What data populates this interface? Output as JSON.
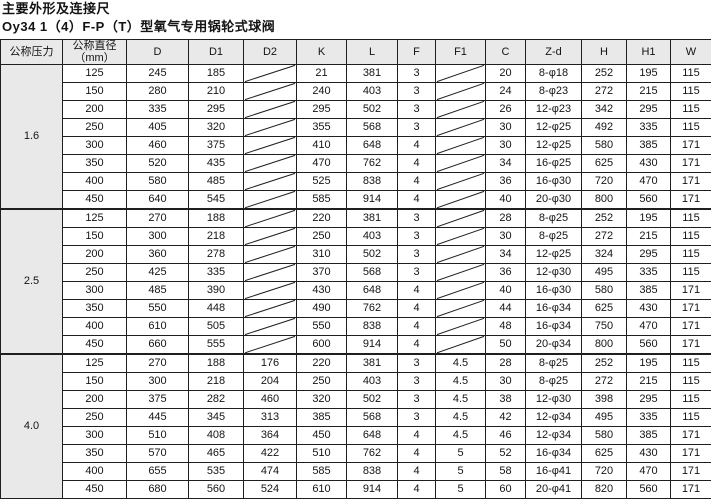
{
  "colors": {
    "border": "#1f1f1f",
    "header_bg": "#e9e9e9",
    "page_bg": "#ffffff",
    "text": "#141414"
  },
  "title": {
    "line1": "主要外形及连接尺",
    "line2": "Oy34 1（4）F-P（T）型氧气专用锅轮式球阀"
  },
  "table": {
    "headers": [
      "公称压力",
      "公称直径\n（mm）",
      "D",
      "D1",
      "D2",
      "K",
      "L",
      "F",
      "F1",
      "C",
      "Z-d",
      "H",
      "H1",
      "W"
    ],
    "slash_symbol": "/",
    "groups": [
      {
        "pressure": "1.6",
        "rows": [
          [
            "125",
            "245",
            "185",
            "/",
            "21",
            "381",
            "3",
            "/",
            "20",
            "8-φ18",
            "252",
            "195",
            "115"
          ],
          [
            "150",
            "280",
            "210",
            "/",
            "240",
            "403",
            "3",
            "/",
            "24",
            "8-φ23",
            "272",
            "215",
            "115"
          ],
          [
            "200",
            "335",
            "295",
            "/",
            "295",
            "502",
            "3",
            "/",
            "26",
            "12-φ23",
            "342",
            "295",
            "115"
          ],
          [
            "250",
            "405",
            "320",
            "/",
            "355",
            "568",
            "3",
            "/",
            "30",
            "12-φ25",
            "492",
            "335",
            "115"
          ],
          [
            "300",
            "460",
            "375",
            "/",
            "410",
            "648",
            "4",
            "/",
            "30",
            "12-φ25",
            "580",
            "385",
            "171"
          ],
          [
            "350",
            "520",
            "435",
            "/",
            "470",
            "762",
            "4",
            "/",
            "34",
            "16-φ25",
            "625",
            "430",
            "171"
          ],
          [
            "400",
            "580",
            "485",
            "/",
            "525",
            "838",
            "4",
            "/",
            "36",
            "16-φ30",
            "720",
            "470",
            "171"
          ],
          [
            "450",
            "640",
            "545",
            "/",
            "585",
            "914",
            "4",
            "/",
            "40",
            "20-φ30",
            "800",
            "560",
            "171"
          ]
        ]
      },
      {
        "pressure": "2.5",
        "rows": [
          [
            "125",
            "270",
            "188",
            "/",
            "220",
            "381",
            "3",
            "/",
            "28",
            "8-φ25",
            "252",
            "195",
            "115"
          ],
          [
            "150",
            "300",
            "218",
            "/",
            "250",
            "403",
            "3",
            "/",
            "30",
            "8-φ25",
            "272",
            "215",
            "115"
          ],
          [
            "200",
            "360",
            "278",
            "/",
            "310",
            "502",
            "3",
            "/",
            "34",
            "12-φ25",
            "324",
            "295",
            "115"
          ],
          [
            "250",
            "425",
            "335",
            "/",
            "370",
            "568",
            "3",
            "/",
            "36",
            "12-φ30",
            "495",
            "335",
            "115"
          ],
          [
            "300",
            "485",
            "390",
            "/",
            "430",
            "648",
            "4",
            "/",
            "40",
            "16-φ30",
            "580",
            "385",
            "171"
          ],
          [
            "350",
            "550",
            "448",
            "/",
            "490",
            "762",
            "4",
            "/",
            "44",
            "16-φ34",
            "625",
            "430",
            "171"
          ],
          [
            "400",
            "610",
            "505",
            "/",
            "550",
            "838",
            "4",
            "/",
            "48",
            "16-φ34",
            "750",
            "470",
            "171"
          ],
          [
            "450",
            "660",
            "555",
            "/",
            "600",
            "914",
            "4",
            "/",
            "50",
            "20-φ34",
            "800",
            "560",
            "171"
          ]
        ]
      },
      {
        "pressure": "4.0",
        "rows": [
          [
            "125",
            "270",
            "188",
            "176",
            "220",
            "381",
            "3",
            "4.5",
            "28",
            "8-φ25",
            "252",
            "195",
            "115"
          ],
          [
            "150",
            "300",
            "218",
            "204",
            "250",
            "403",
            "3",
            "4.5",
            "30",
            "8-φ25",
            "272",
            "215",
            "115"
          ],
          [
            "200",
            "375",
            "282",
            "460",
            "320",
            "502",
            "3",
            "4.5",
            "38",
            "12-φ30",
            "398",
            "295",
            "115"
          ],
          [
            "250",
            "445",
            "345",
            "313",
            "385",
            "568",
            "3",
            "4.5",
            "42",
            "12-φ34",
            "495",
            "335",
            "115"
          ],
          [
            "300",
            "510",
            "408",
            "364",
            "450",
            "648",
            "4",
            "4.5",
            "46",
            "12-φ34",
            "580",
            "385",
            "171"
          ],
          [
            "350",
            "570",
            "465",
            "422",
            "510",
            "762",
            "4",
            "5",
            "52",
            "16-φ34",
            "625",
            "430",
            "171"
          ],
          [
            "400",
            "655",
            "535",
            "474",
            "585",
            "838",
            "4",
            "5",
            "58",
            "16-φ41",
            "720",
            "470",
            "171"
          ],
          [
            "450",
            "680",
            "560",
            "524",
            "610",
            "914",
            "4",
            "5",
            "60",
            "20-φ41",
            "820",
            "560",
            "171"
          ]
        ]
      }
    ]
  }
}
